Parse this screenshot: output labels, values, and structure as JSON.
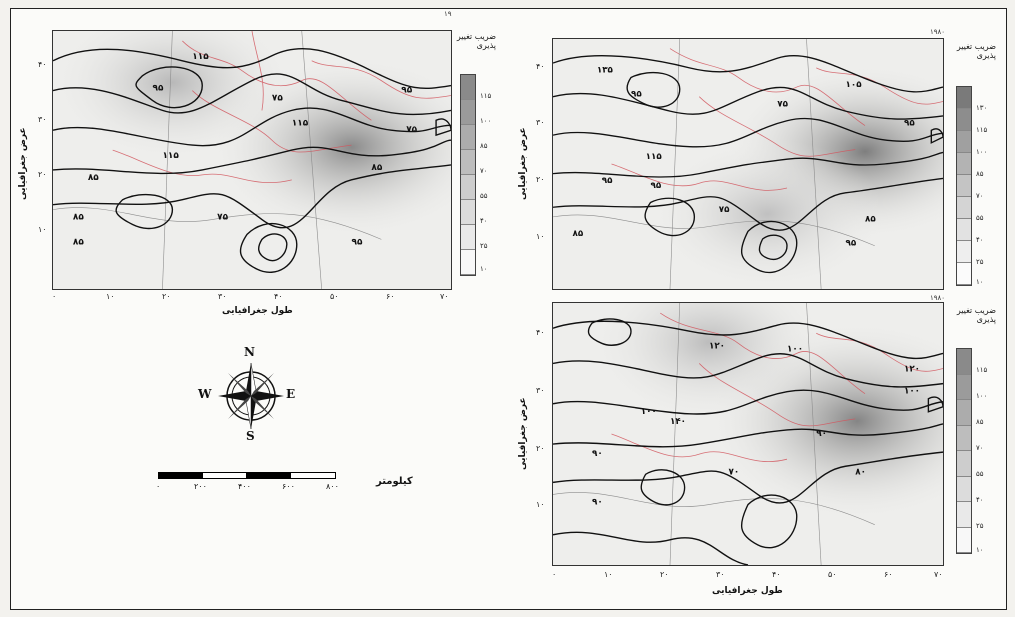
{
  "unit_label": "کیلومتر",
  "scale_numbers": [
    "۰",
    "۲۰۰",
    "۴۰۰",
    "۶۰۰",
    "۸۰۰"
  ],
  "compass": {
    "n": "N",
    "s": "S",
    "e": "E",
    "w": "W"
  },
  "legend_title": "ضریب تغییر پذیری",
  "x_axis_label": "طول جغرافیایی",
  "y_axis_label": "عرض جغرافیایی",
  "x_ticks": [
    "۰",
    "۱۰",
    "۲۰",
    "۳۰",
    "۴۰",
    "۵۰",
    "۶۰",
    "۷۰"
  ],
  "panels": [
    {
      "corner": "۱۹",
      "y_ticks": [
        "۴۰",
        "۳۰",
        "۲۰",
        "۱۰"
      ],
      "legend_values": [
        "۱۱۵",
        "۱۰۰",
        "۸۵",
        "۷۰",
        "۵۵",
        "۴۰",
        "۲۵",
        "۱۰"
      ],
      "contour_labels": [
        "۱۱۵",
        "۹۵",
        "۷۵",
        "۱۱۵",
        "۸۵",
        "۹۵",
        "۷۵",
        "۸۵",
        "۸۵",
        "۹۵",
        "۱۱۵",
        "۸۵",
        "۷۵"
      ]
    },
    {
      "corner": "۱۹۸۰",
      "y_ticks": [
        "۴۰",
        "۳۰",
        "۲۰",
        "۱۰"
      ],
      "legend_values": [
        "۱۳۰",
        "۱۱۵",
        "۱۰۰",
        "۸۵",
        "۷۰",
        "۵۵",
        "۴۰",
        "۲۵",
        "۱۰"
      ],
      "contour_labels": [
        "۱۳۵",
        "۹۵",
        "۱۱۵",
        "۹۵",
        "۷۵",
        "۸۵",
        "۹۵",
        "۱۰۵",
        "۹۵",
        "۸۵",
        "۹۵",
        "۷۵"
      ]
    },
    {
      "corner": "۱۹۸۰",
      "y_ticks": [
        "۴۰",
        "۳۰",
        "۲۰",
        "۱۰"
      ],
      "legend_values": [
        "۱۱۵",
        "۱۰۰",
        "۸۵",
        "۷۰",
        "۵۵",
        "۴۰",
        "۲۵",
        "۱۰"
      ],
      "contour_labels": [
        "۱۲۰",
        "۱۰۰",
        "۱۴۰",
        "۱۲۰",
        "۱۰۰",
        "۹۰",
        "۹۰",
        "۸۰",
        "۹۰",
        "۷۰",
        "۱۰۰"
      ]
    }
  ]
}
